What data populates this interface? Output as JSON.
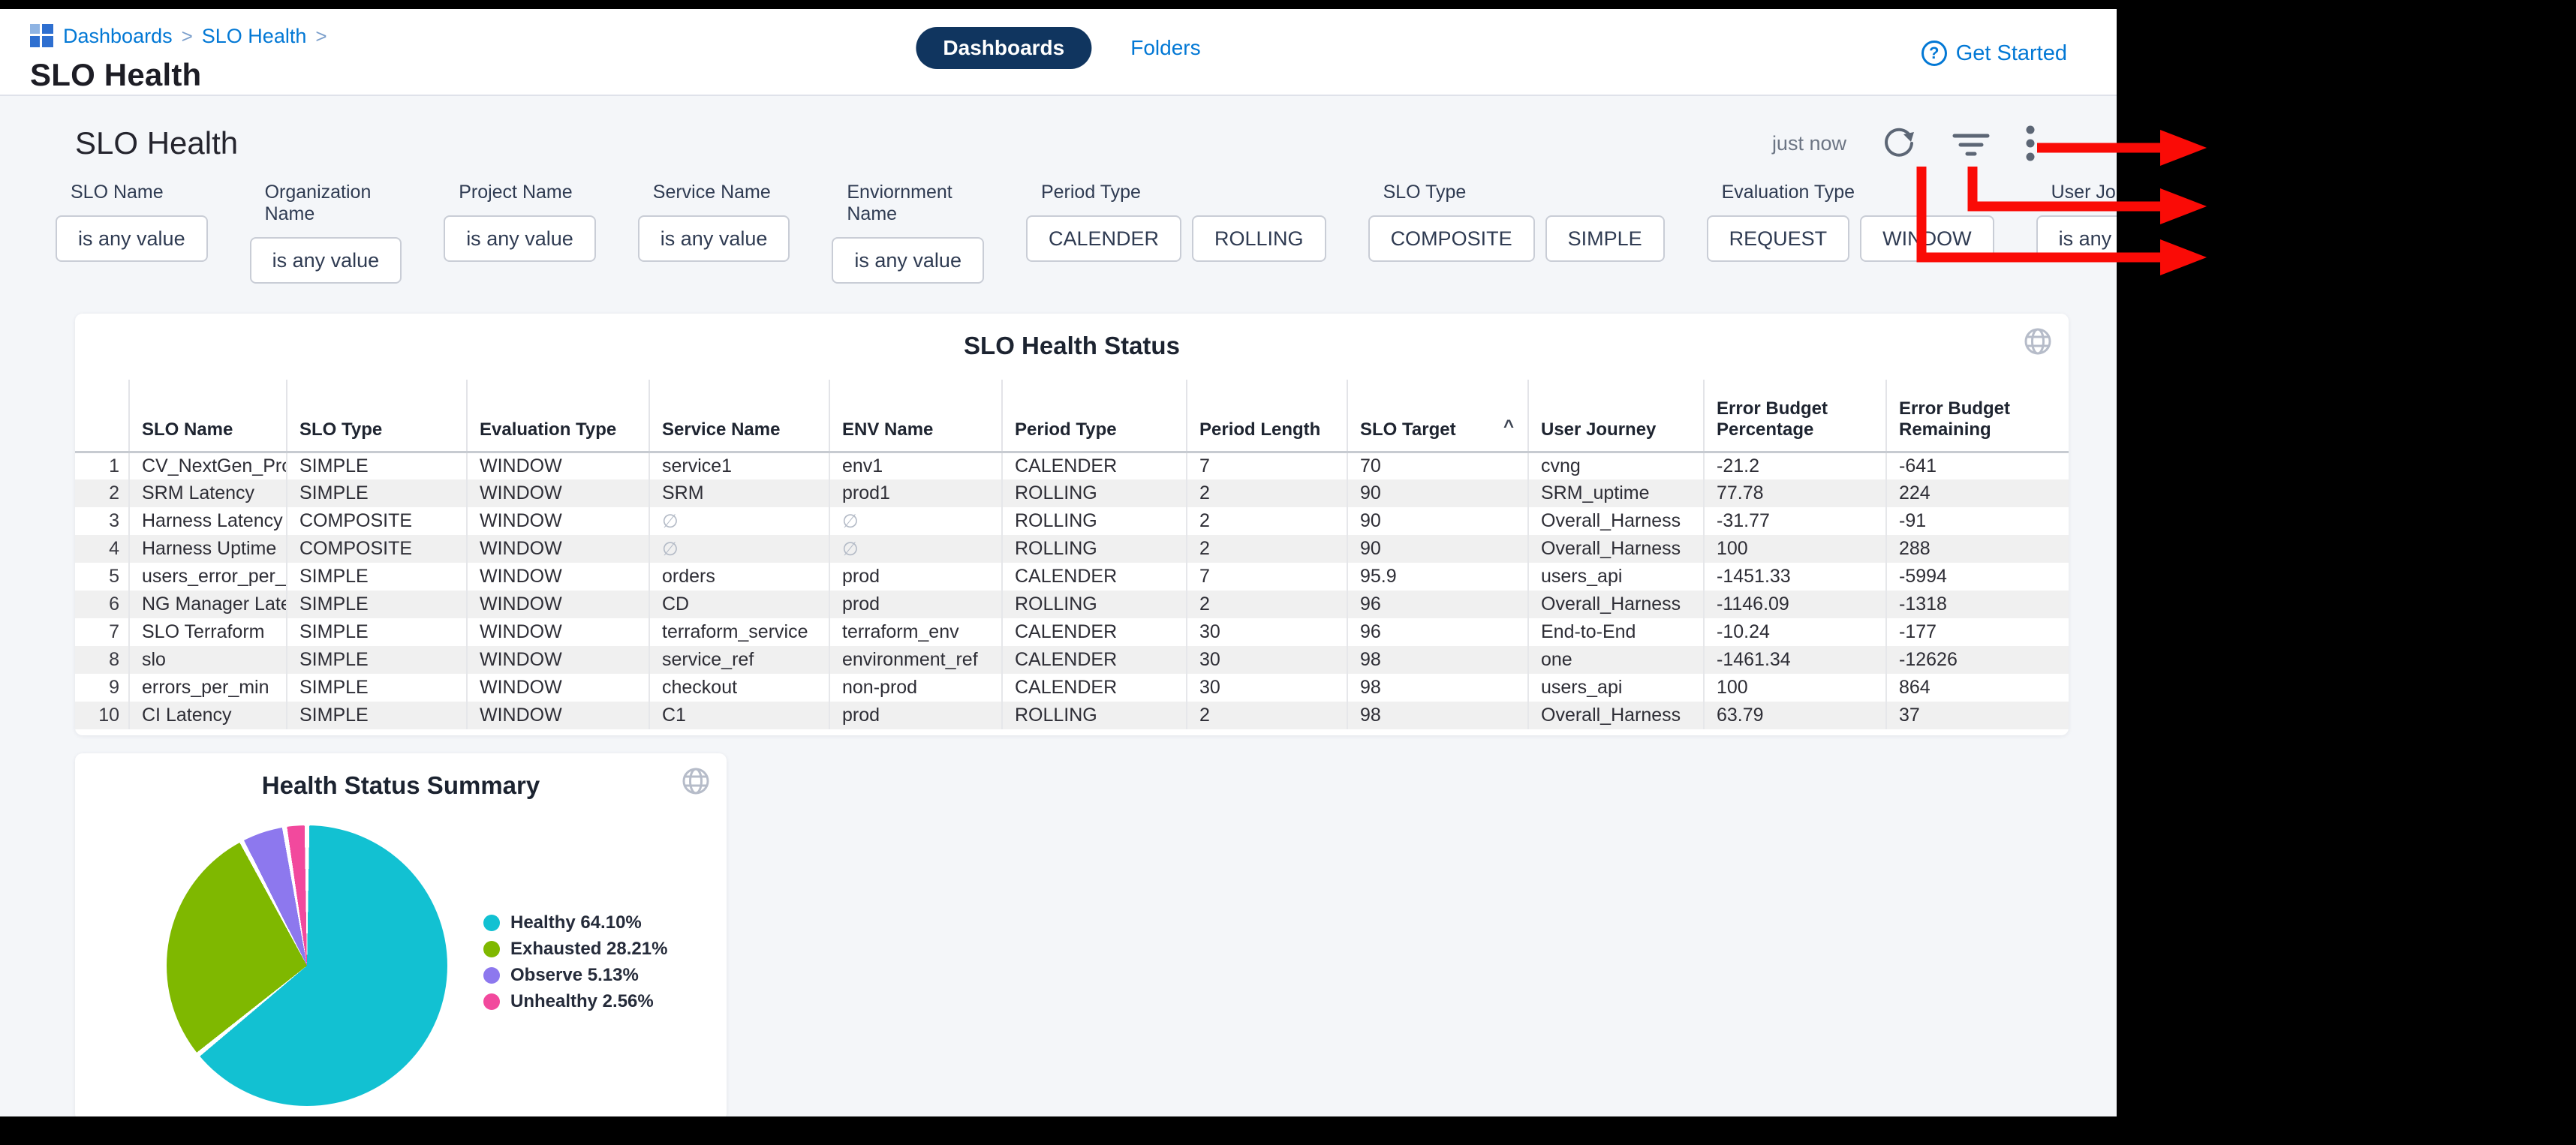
{
  "colors": {
    "accent_blue": "#0278d5",
    "tab_pill_bg": "#10355f",
    "annotation_red": "#fa0b06",
    "body_bg": "#f4f6f9",
    "row_stripe": "#f0f0f0"
  },
  "header": {
    "breadcrumb": {
      "items": [
        "Dashboards",
        "SLO Health"
      ],
      "separator": ">"
    },
    "page_title": "SLO Health",
    "tabs": [
      {
        "label": "Dashboards",
        "active": true
      },
      {
        "label": "Folders",
        "active": false
      }
    ],
    "get_started": {
      "label": "Get Started",
      "icon": "help-circle-icon"
    }
  },
  "toolbar": {
    "dashboard_title": "SLO Health",
    "last_refreshed": "just now",
    "icons": [
      "refresh-icon",
      "filter-icon",
      "kebab-menu-icon"
    ]
  },
  "filters": [
    {
      "label": "SLO Name",
      "chips": [
        "is any value"
      ]
    },
    {
      "label": "Organization Name",
      "chips": [
        "is any value"
      ]
    },
    {
      "label": "Project Name",
      "chips": [
        "is any value"
      ]
    },
    {
      "label": "Service Name",
      "chips": [
        "is any value"
      ]
    },
    {
      "label": "Enviornment Name",
      "chips": [
        "is any value"
      ]
    },
    {
      "label": "Period Type",
      "chips": [
        "CALENDER",
        "ROLLING"
      ]
    },
    {
      "label": "SLO Type",
      "chips": [
        "COMPOSITE",
        "SIMPLE"
      ]
    },
    {
      "label": "Evaluation Type",
      "chips": [
        "REQUEST",
        "WINDOW"
      ]
    },
    {
      "label": "User Journey",
      "chips": [
        "is any value"
      ]
    }
  ],
  "table": {
    "title": "SLO Health Status",
    "columns": [
      {
        "label": "SLO Name"
      },
      {
        "label": "SLO Type"
      },
      {
        "label": "Evaluation Type"
      },
      {
        "label": "Service Name"
      },
      {
        "label": "ENV Name"
      },
      {
        "label": "Period Type"
      },
      {
        "label": "Period Length"
      },
      {
        "label": "SLO Target",
        "sort": "asc"
      },
      {
        "label": "User Journey"
      },
      {
        "label": "Error Budget",
        "label2": "Percentage"
      },
      {
        "label": "Error Budget",
        "label2": "Remaining"
      }
    ],
    "rows": [
      [
        "1",
        "CV_NextGen_Prod",
        "SIMPLE",
        "WINDOW",
        "service1",
        "env1",
        "CALENDER",
        "7",
        "70",
        "cvng",
        "-21.2",
        "-641"
      ],
      [
        "2",
        "SRM Latency",
        "SIMPLE",
        "WINDOW",
        "SRM",
        "prod1",
        "ROLLING",
        "2",
        "90",
        "SRM_uptime",
        "77.78",
        "224"
      ],
      [
        "3",
        "Harness Latency",
        "COMPOSITE",
        "WINDOW",
        "∅",
        "∅",
        "ROLLING",
        "2",
        "90",
        "Overall_Harness",
        "-31.77",
        "-91"
      ],
      [
        "4",
        "Harness Uptime",
        "COMPOSITE",
        "WINDOW",
        "∅",
        "∅",
        "ROLLING",
        "2",
        "90",
        "Overall_Harness",
        "100",
        "288"
      ],
      [
        "5",
        "users_error_per_min",
        "SIMPLE",
        "WINDOW",
        "orders",
        "prod",
        "CALENDER",
        "7",
        "95.9",
        "users_api",
        "-1451.33",
        "-5994"
      ],
      [
        "6",
        "NG Manager Latency",
        "SIMPLE",
        "WINDOW",
        "CD",
        "prod",
        "ROLLING",
        "2",
        "96",
        "Overall_Harness",
        "-1146.09",
        "-1318"
      ],
      [
        "7",
        "SLO Terraform",
        "SIMPLE",
        "WINDOW",
        "terraform_service",
        "terraform_env",
        "CALENDER",
        "30",
        "96",
        "End-to-End",
        "-10.24",
        "-177"
      ],
      [
        "8",
        "slo",
        "SIMPLE",
        "WINDOW",
        "service_ref",
        "environment_ref",
        "CALENDER",
        "30",
        "98",
        "one",
        "-1461.34",
        "-12626"
      ],
      [
        "9",
        "errors_per_min",
        "SIMPLE",
        "WINDOW",
        "checkout",
        "non-prod",
        "CALENDER",
        "30",
        "98",
        "users_api",
        "100",
        "864"
      ],
      [
        "10",
        "CI Latency",
        "SIMPLE",
        "WINDOW",
        "C1",
        "prod",
        "ROLLING",
        "2",
        "98",
        "Overall_Harness",
        "63.79",
        "37"
      ]
    ]
  },
  "chart_data": {
    "type": "pie",
    "title": "Health Status Summary",
    "labels": [
      "Healthy",
      "Exhausted",
      "Observe",
      "Unhealthy"
    ],
    "values": [
      64.1,
      28.21,
      5.13,
      2.56
    ],
    "colors": [
      "#12c1d2",
      "#7fb800",
      "#8d78ee",
      "#f2499d"
    ],
    "legend_labels": [
      "Healthy 64.10%",
      "Exhausted 28.21%",
      "Observe 5.13%",
      "Unhealthy 2.56%"
    ],
    "legend_position": "right",
    "start_angle_deg": 0,
    "direction": "clockwise"
  }
}
